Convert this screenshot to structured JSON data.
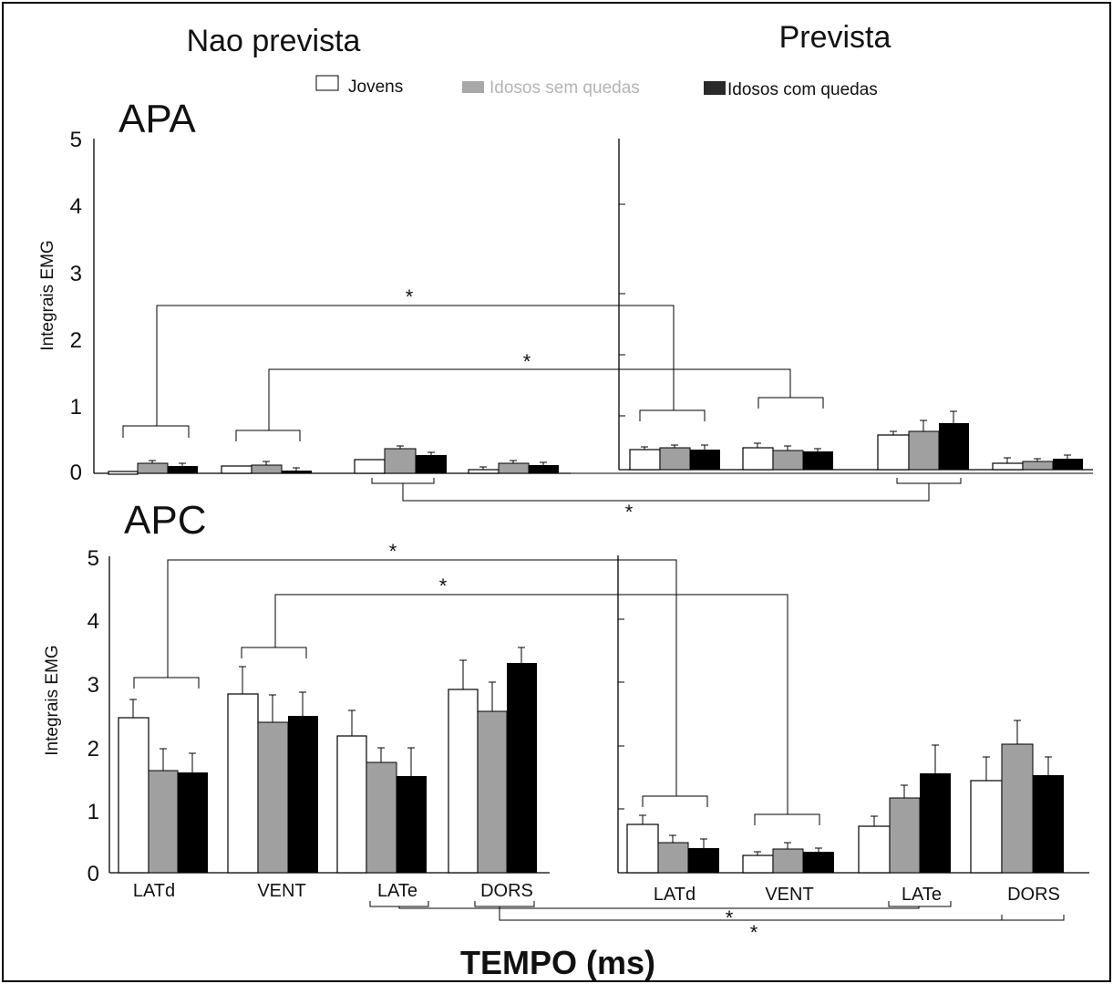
{
  "figure": {
    "left_title": "Nao prevista",
    "right_title": "Prevista",
    "x_title": "TEMPO (ms)"
  },
  "legend": [
    {
      "label": "Jovens",
      "color": "#ffffff",
      "text_color": "#111111"
    },
    {
      "label": "Idosos sem quedas",
      "color": "#a0a0a0",
      "text_color": "#b4b4b4"
    },
    {
      "label": "Idosos com quedas",
      "color": "#2a2a2a",
      "text_color": "#111111"
    }
  ],
  "chart_data": [
    {
      "type": "bar",
      "panel": "APA",
      "ylabel": "Integrais EMG",
      "ylim": [
        0,
        5
      ],
      "y_ticks": [
        "0",
        "1",
        "2",
        "3",
        "4",
        "5"
      ],
      "categories": [
        "LATd",
        "VENT",
        "LATe",
        "DORS"
      ],
      "conditions": [
        {
          "name": "Nao prevista",
          "series": [
            {
              "name": "Jovens",
              "values": [
                -0.02,
                0.08,
                0.18,
                0.03
              ],
              "errors": [
                0.0,
                0.02,
                0.0,
                0.03
              ]
            },
            {
              "name": "Idosos sem quedas",
              "values": [
                0.13,
                0.09,
                0.33,
                0.12
              ],
              "errors": [
                0.04,
                0.05,
                0.04,
                0.04
              ]
            },
            {
              "name": "Idosos com quedas",
              "values": [
                0.09,
                0.03,
                0.24,
                0.09
              ],
              "errors": [
                0.04,
                0.03,
                0.03,
                0.03
              ]
            }
          ]
        },
        {
          "name": "Prevista",
          "series": [
            {
              "name": "Jovens",
              "values": [
                0.31,
                0.35,
                0.55,
                0.1
              ],
              "errors": [
                0.05,
                0.08,
                0.05,
                0.09
              ]
            },
            {
              "name": "Idosos sem quedas",
              "values": [
                0.34,
                0.3,
                0.6,
                0.13
              ],
              "errors": [
                0.05,
                0.08,
                0.17,
                0.05
              ]
            },
            {
              "name": "Idosos com quedas",
              "values": [
                0.31,
                0.29,
                0.73,
                0.17
              ],
              "errors": [
                0.07,
                0.04,
                0.18,
                0.06
              ]
            }
          ]
        }
      ],
      "annotations": [
        "*",
        "*",
        "*"
      ]
    },
    {
      "type": "bar",
      "panel": "APC",
      "ylabel": "Integrais EMG",
      "ylim": [
        0,
        5
      ],
      "y_ticks": [
        "0",
        "1",
        "2",
        "3",
        "4",
        "5"
      ],
      "categories": [
        "LATd",
        "VENT",
        "LATe",
        "DORS"
      ],
      "conditions": [
        {
          "name": "Nao prevista",
          "series": [
            {
              "name": "Jovens",
              "values": [
                2.44,
                2.82,
                2.16,
                2.9
              ],
              "errors": [
                0.3,
                0.43,
                0.4,
                0.46
              ]
            },
            {
              "name": "Idosos sem quedas",
              "values": [
                1.62,
                2.37,
                1.75,
                2.55
              ],
              "errors": [
                0.35,
                0.43,
                0.23,
                0.46
              ]
            },
            {
              "name": "Idosos com quedas",
              "values": [
                1.58,
                2.48,
                1.52,
                3.31
              ],
              "errors": [
                0.33,
                0.38,
                0.45,
                0.25
              ]
            }
          ]
        },
        {
          "name": "Prevista",
          "series": [
            {
              "name": "Jovens",
              "values": [
                0.76,
                0.28,
                0.73,
                1.45
              ],
              "errors": [
                0.14,
                0.06,
                0.16,
                0.38
              ]
            },
            {
              "name": "Idosos sem quedas",
              "values": [
                0.48,
                0.38,
                1.18,
                2.03
              ],
              "errors": [
                0.11,
                0.1,
                0.2,
                0.38
              ]
            },
            {
              "name": "Idosos com quedas",
              "values": [
                0.39,
                0.33,
                1.57,
                1.54
              ],
              "errors": [
                0.15,
                0.06,
                0.45,
                0.28
              ]
            }
          ]
        }
      ],
      "annotations": [
        "*",
        "*",
        "*",
        "*"
      ]
    }
  ]
}
